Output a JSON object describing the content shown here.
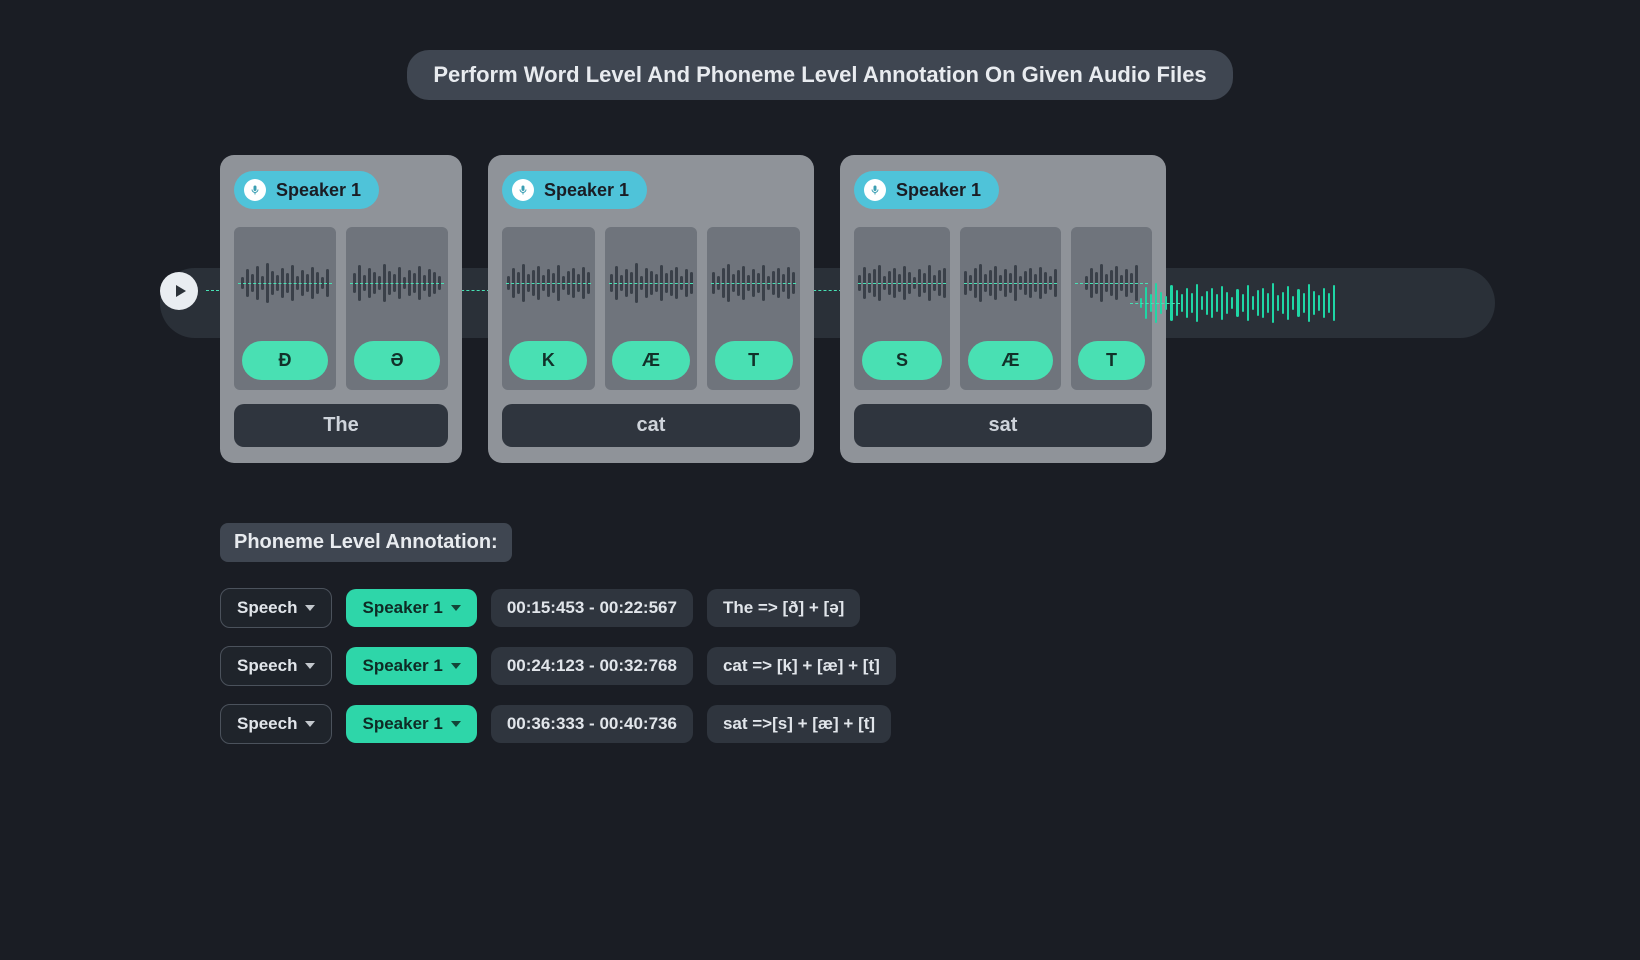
{
  "colors": {
    "page_bg": "#1a1d24",
    "pill_bg": "#3f4651",
    "card_bg": "#8f9399",
    "phoneme_col_bg": "#6f747c",
    "phoneme_chip_bg": "#49e0b3",
    "phoneme_chip_text": "#12312a",
    "speaker_badge_bg": "#4fc3d9",
    "word_label_bg": "#2f353e",
    "track_bg": "#2a3038",
    "wave_bar": "#3a4049",
    "trail_wave_bar": "#1fd6a5",
    "accent_line": "#47e1b4",
    "chip_dark_bg": "#2f353e",
    "chip_border": "#4b525c",
    "chip_teal_bg": "#2ed6a9",
    "play_btn_bg": "#e9edf1"
  },
  "title": "Perform Word Level And Phoneme Level Annotation On Given Audio Files",
  "words": [
    {
      "speaker": "Speaker 1",
      "word": "The",
      "phonemes": [
        "Ð",
        "Ə"
      ]
    },
    {
      "speaker": "Speaker 1",
      "word": "cat",
      "phonemes": [
        "K",
        "Æ",
        "T"
      ]
    },
    {
      "speaker": "Speaker 1",
      "word": "sat",
      "phonemes": [
        "S",
        "Æ",
        "T"
      ]
    }
  ],
  "section_label": "Phoneme Level Annotation:",
  "annotation_rows": [
    {
      "type": "Speech",
      "speaker": "Speaker 1",
      "time": "00:15:453 - 00:22:567",
      "breakdown": "The  => [ð]  +  [ə]"
    },
    {
      "type": "Speech",
      "speaker": "Speaker 1",
      "time": "00:24:123 - 00:32:768",
      "breakdown": "cat => [k]  +  [æ]  +  [t]"
    },
    {
      "type": "Speech",
      "speaker": "Speaker 1",
      "time": "00:36:333 - 00:40:736",
      "breakdown": "sat =>[s]  +  [æ]  +  [t]"
    }
  ],
  "wave_heights": {
    "word0_col0": [
      12,
      28,
      18,
      34,
      14,
      40,
      24,
      16,
      30,
      20,
      36,
      14,
      26,
      18,
      32,
      22,
      12,
      28
    ],
    "word0_col1": [
      20,
      36,
      16,
      30,
      22,
      14,
      38,
      24,
      18,
      32,
      12,
      26,
      20,
      34,
      16,
      28,
      22,
      14
    ],
    "word1_col0": [
      14,
      30,
      22,
      38,
      18,
      26,
      34,
      16,
      28,
      20,
      36,
      14,
      24,
      30,
      18,
      32,
      22
    ],
    "word1_col1": [
      18,
      34,
      16,
      28,
      22,
      40,
      14,
      30,
      24,
      18,
      36,
      20,
      26,
      32,
      14,
      28,
      22
    ],
    "word1_col2": [
      22,
      14,
      30,
      38,
      18,
      26,
      34,
      16,
      28,
      20,
      36,
      14,
      24,
      30,
      18,
      32,
      22
    ],
    "word2_col0": [
      16,
      32,
      20,
      28,
      36,
      14,
      24,
      30,
      18,
      34,
      22,
      12,
      28,
      20,
      36,
      16,
      26,
      30
    ],
    "word2_col1": [
      24,
      16,
      30,
      38,
      18,
      26,
      34,
      16,
      28,
      20,
      36,
      14,
      24,
      30,
      18,
      32,
      22,
      14,
      28
    ],
    "word2_col2": [
      14,
      30,
      22,
      38,
      18,
      26,
      34,
      16,
      28,
      20,
      36
    ],
    "trail": [
      10,
      32,
      18,
      40,
      22,
      14,
      36,
      26,
      18,
      30,
      20,
      38,
      14,
      24,
      30,
      18,
      34,
      22,
      12,
      28,
      18,
      36,
      14,
      26,
      30,
      20,
      40,
      16,
      22,
      34,
      14,
      28,
      20,
      38,
      24,
      16,
      30,
      20,
      36
    ]
  }
}
